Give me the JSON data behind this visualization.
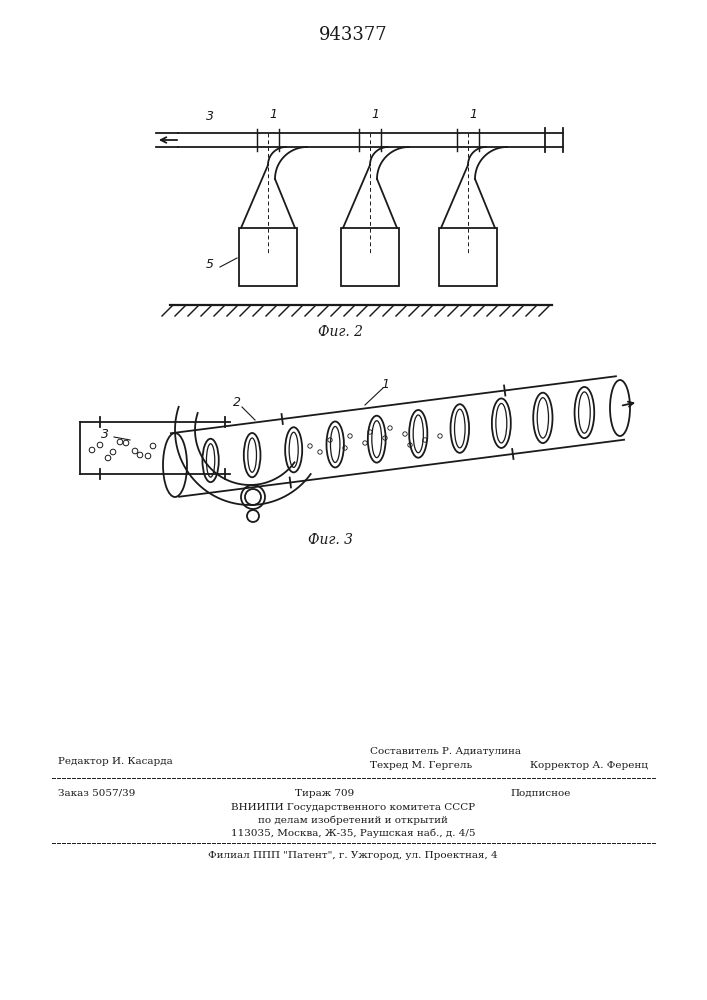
{
  "patent_number": "943377",
  "bg_color": "#ffffff",
  "line_color": "#1a1a1a",
  "fig2_label": "Фиг. 2",
  "fig3_label": "Фиг. 3",
  "footer_line1_left": "Редактор И. Касарда",
  "footer_line1_center": "Составитель Р. Адиатулина",
  "footer_line2_center": "Техред М. Гергель",
  "footer_line2_right": "Корректор А. Ференц",
  "footer_zakaz": "Заказ 5057/39",
  "footer_tirazh": "Тираж 709",
  "footer_podpisnoe": "Подписное",
  "footer_vniipи": "ВНИИПИ Государственного комитета СССР",
  "footer_po_delam": "по делам изобретений и открытий",
  "footer_address": "113035, Москва, Ж-35, Раушская наб., д. 4/5",
  "footer_filial": "Филиал ППП \"Патент\", г. Ужгород, ул. Проектная, 4"
}
